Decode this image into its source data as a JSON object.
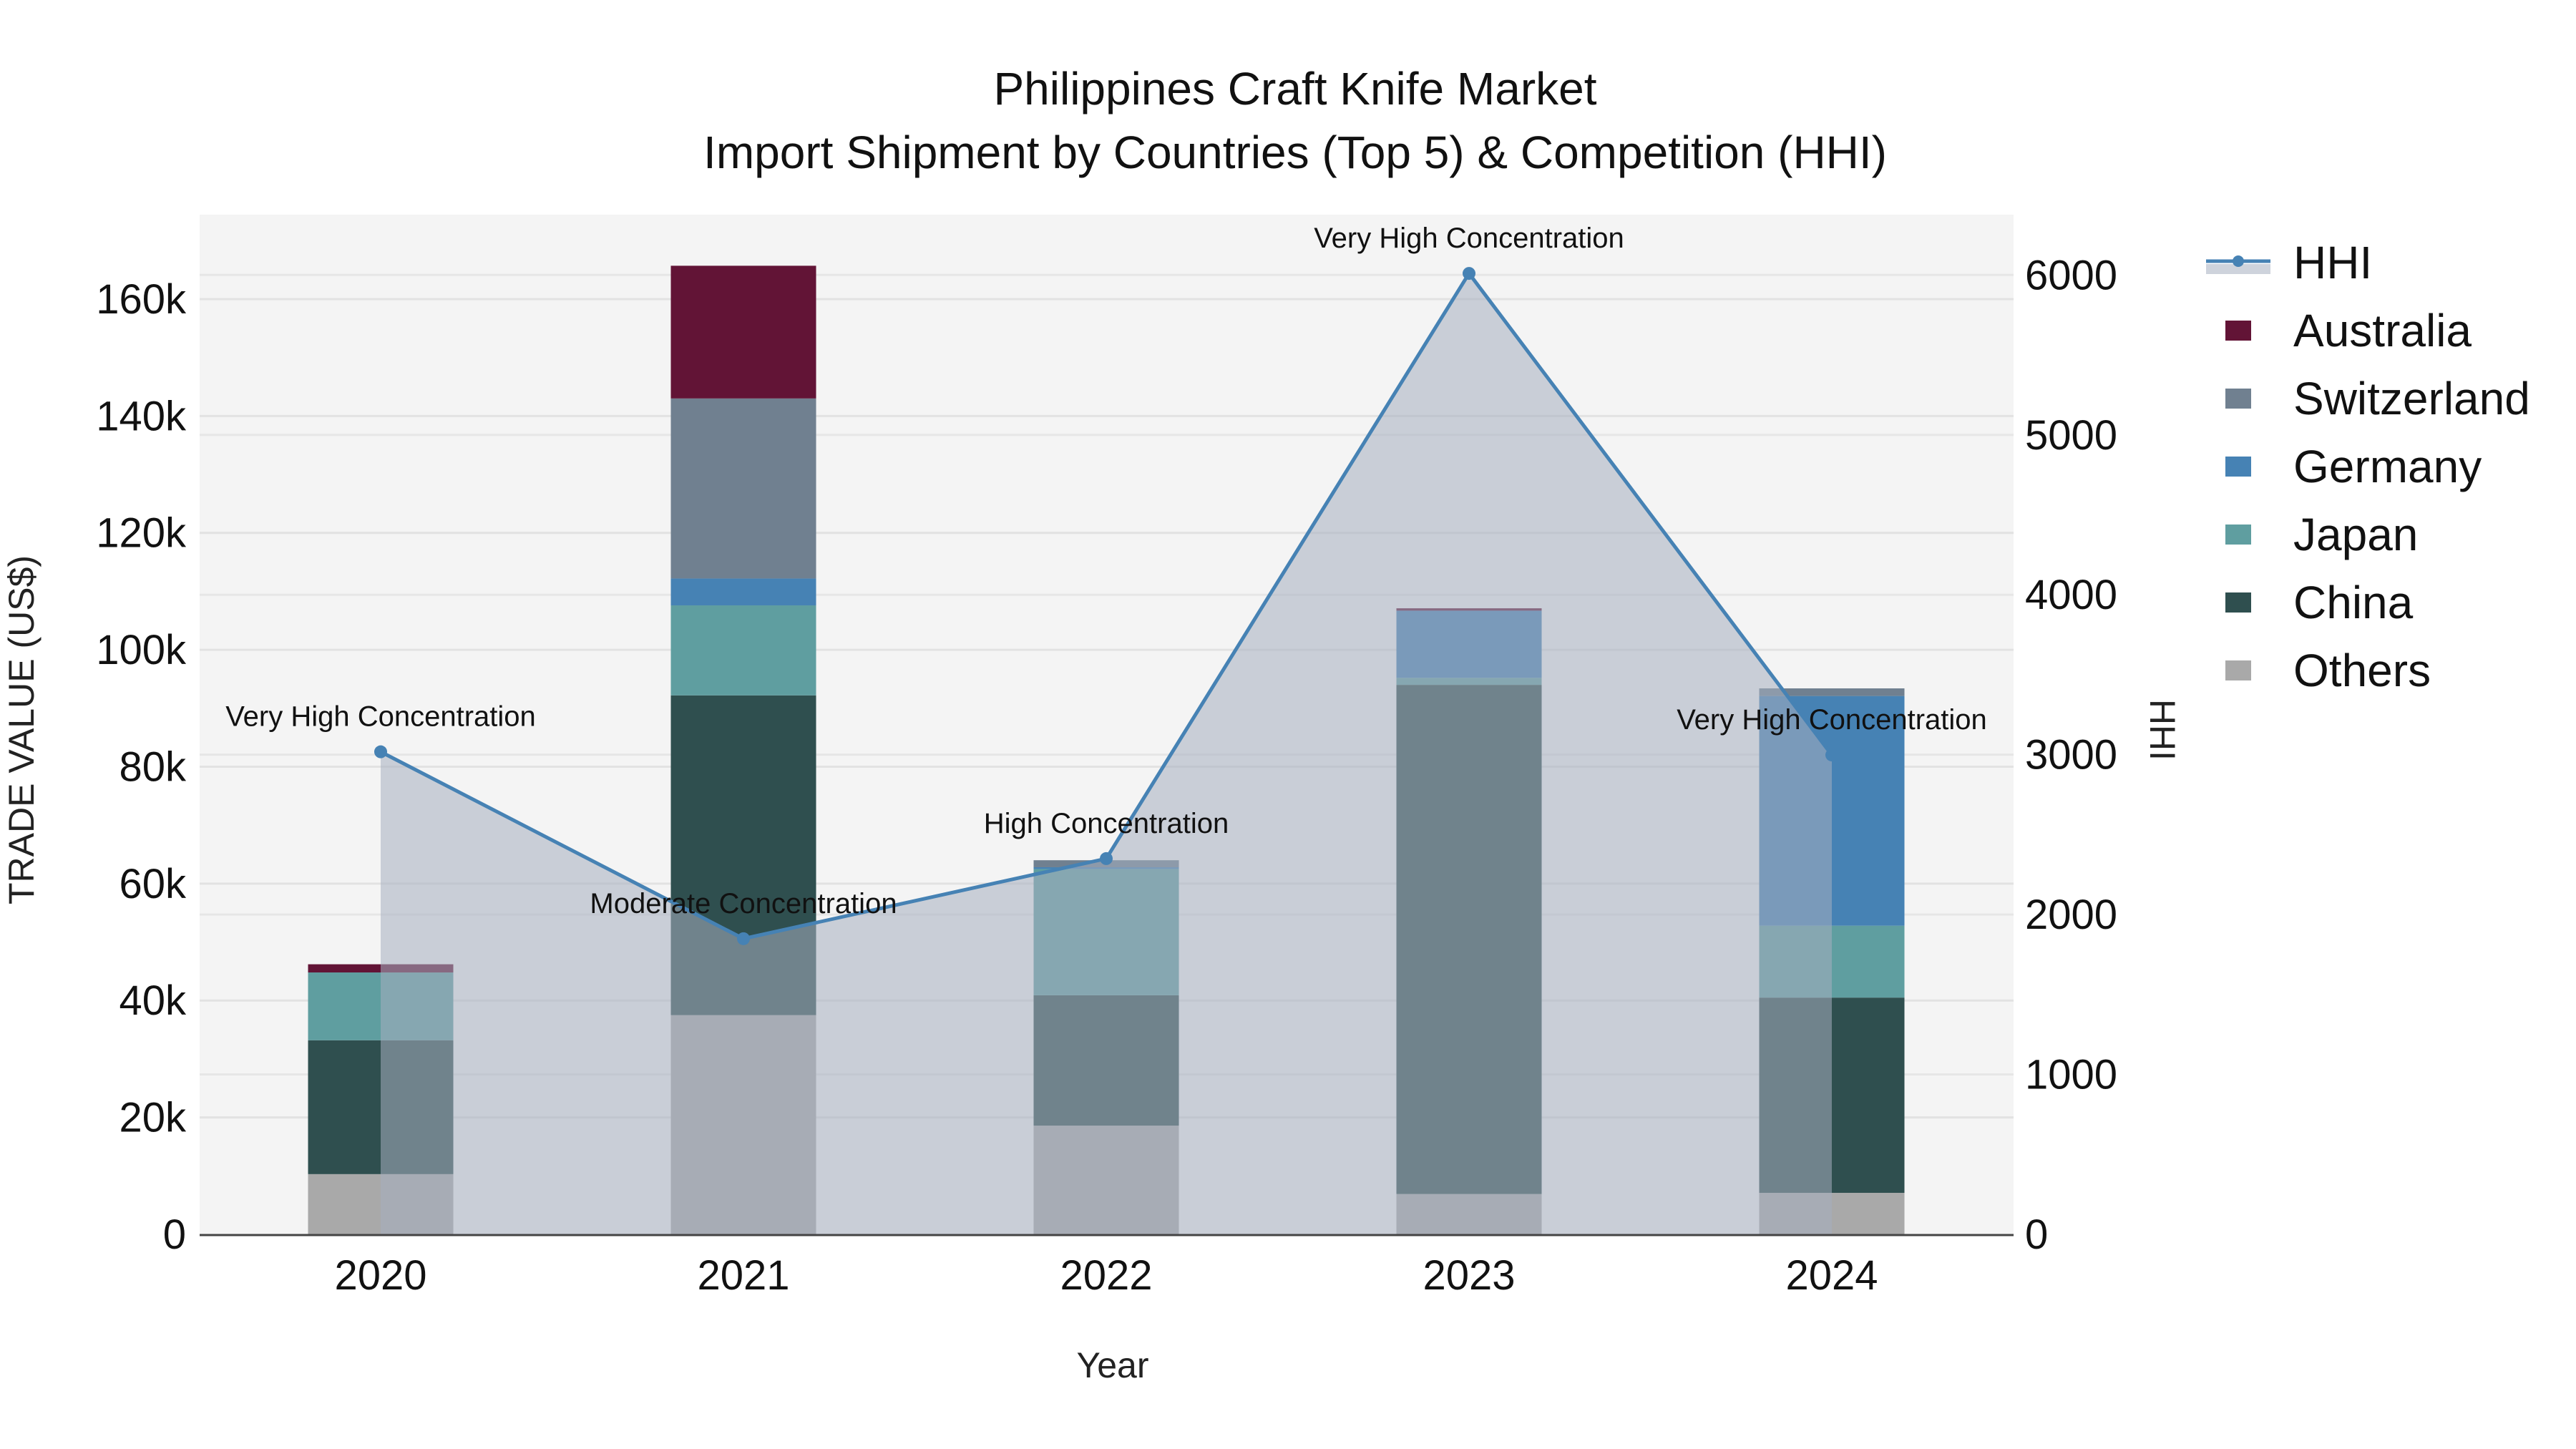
{
  "chart": {
    "title_line1": "Philippines Craft Knife Market",
    "title_line2": "Import Shipment by Countries (Top 5) & Competition (HHI)",
    "xlabel": "Year",
    "ylabel": "TRADE VALUE (US$)",
    "y2label": "HHI",
    "y_ticks": [
      "0",
      "20k",
      "40k",
      "60k",
      "80k",
      "100k",
      "120k",
      "140k",
      "160k"
    ],
    "y2_ticks": [
      "0",
      "1000",
      "2000",
      "3000",
      "4000",
      "5000",
      "6000"
    ],
    "x_ticks": [
      "2020",
      "2021",
      "2022",
      "2023",
      "2024"
    ],
    "legend": [
      {
        "label": "HHI",
        "color": "#4682b4",
        "type": "line"
      },
      {
        "label": "Australia",
        "color": "#621436",
        "type": "bar"
      },
      {
        "label": "Switzerland",
        "color": "#708090",
        "type": "bar"
      },
      {
        "label": "Germany",
        "color": "#4682b4",
        "type": "bar"
      },
      {
        "label": "Japan",
        "color": "#5f9ea0",
        "type": "bar"
      },
      {
        "label": "China",
        "color": "#2f4f4f",
        "type": "bar"
      },
      {
        "label": "Others",
        "color": "#a9a9a9",
        "type": "bar"
      }
    ],
    "annotations": [
      {
        "year": "2020",
        "text": "Very High Concentration"
      },
      {
        "year": "2021",
        "text": "Moderate Concentration"
      },
      {
        "year": "2022",
        "text": "High Concentration"
      },
      {
        "year": "2023",
        "text": "Very High Concentration"
      },
      {
        "year": "2024",
        "text": "Very High Concentration"
      }
    ]
  },
  "chart_data": {
    "type": "bar",
    "title": "Philippines Craft Knife Market — Import Shipment by Countries (Top 5) & Competition (HHI)",
    "xlabel": "Year",
    "ylabel": "TRADE VALUE (US$)",
    "y2label": "HHI",
    "ylim": [
      0,
      173000
    ],
    "y2lim": [
      0,
      6300
    ],
    "stacked": true,
    "legend_position": "right",
    "grid": true,
    "categories": [
      "2020",
      "2021",
      "2022",
      "2023",
      "2024"
    ],
    "series": [
      {
        "name": "Others",
        "color": "#a9a9a9",
        "values": [
          10300,
          37500,
          18600,
          6900,
          7100
        ]
      },
      {
        "name": "China",
        "color": "#2f4f4f",
        "values": [
          22900,
          54700,
          22300,
          87100,
          33400
        ]
      },
      {
        "name": "Japan",
        "color": "#5f9ea0",
        "values": [
          11600,
          15400,
          21600,
          1200,
          12300
        ]
      },
      {
        "name": "Germany",
        "color": "#4682b4",
        "values": [
          0,
          4600,
          300,
          11500,
          39300
        ]
      },
      {
        "name": "Switzerland",
        "color": "#708090",
        "values": [
          0,
          30800,
          1200,
          0,
          1300
        ]
      },
      {
        "name": "Australia",
        "color": "#621436",
        "values": [
          1400,
          22700,
          0,
          400,
          0
        ]
      }
    ],
    "line_series": {
      "name": "HHI",
      "axis": "y2",
      "type": "line+area",
      "color": "#4682b4",
      "values": [
        3018,
        1849,
        2350,
        6010,
        2998
      ],
      "labels": [
        "Very High Concentration",
        "Moderate Concentration",
        "High Concentration",
        "Very High Concentration",
        "Very High Concentration"
      ]
    }
  }
}
